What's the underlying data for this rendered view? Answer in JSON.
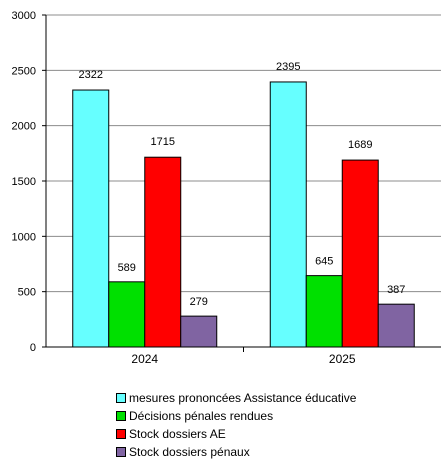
{
  "chart_data": {
    "type": "bar",
    "categories": [
      "2024",
      "2025"
    ],
    "series": [
      {
        "name": "mesures prononcées Assistance éducative",
        "values": [
          2322,
          2395
        ],
        "color": "#66ffff"
      },
      {
        "name": "Décisions pénales rendues",
        "values": [
          589,
          645
        ],
        "color": "#00e000"
      },
      {
        "name": "Stock dossiers AE",
        "values": [
          1715,
          1689
        ],
        "color": "#ff0000"
      },
      {
        "name": "Stock dossiers pénaux",
        "values": [
          279,
          387
        ],
        "color": "#8064a2"
      }
    ],
    "ylim": [
      0,
      3000
    ],
    "yticks": [
      "0",
      "500",
      "1000",
      "1500",
      "2000",
      "2500",
      "3000"
    ],
    "grid": true,
    "legend_position": "bottom"
  }
}
